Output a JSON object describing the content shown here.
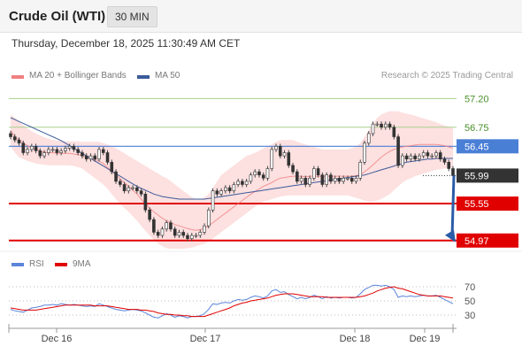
{
  "header": {
    "title": "Crude Oil (WTI)",
    "timeframe": "30 MIN"
  },
  "timestamp": "Thursday, December 18, 2025 11:30:49 AM CET",
  "legend": {
    "ma20": "MA 20 + Bollinger Bands",
    "ma50": "MA 50",
    "rsi": "RSI",
    "ma9": "9MA"
  },
  "copyright": "Research © 2025 Trading Central",
  "colors": {
    "ma20": "#f08080",
    "ma50": "#3b5b9a",
    "bands": "#fde0e0",
    "green": "#a8d08d",
    "blue": "#4a7fd6",
    "red": "#e00000",
    "dark": "#333333",
    "arrow": "#2b5ca8",
    "rsi": "#5b85d9",
    "ma9": "#e00000"
  },
  "chart_data": [
    {
      "type": "candlestick",
      "x_ticks": [
        "Dec 16",
        "Dec 17",
        "Dec 18",
        "Dec 19"
      ],
      "ylim": [
        54.8,
        57.4
      ],
      "levels": [
        {
          "label": "57.20",
          "value": 57.2,
          "style": "resistance"
        },
        {
          "label": "56.75",
          "value": 56.75,
          "style": "resistance"
        },
        {
          "label": "56.45",
          "value": 56.45,
          "style": "pivot"
        },
        {
          "label": "55.99",
          "value": 55.99,
          "style": "last-price"
        },
        {
          "label": "55.55",
          "value": 55.55,
          "style": "support"
        },
        {
          "label": "54.97",
          "value": 54.97,
          "style": "support"
        }
      ],
      "closes": [
        56.6,
        56.55,
        56.5,
        56.35,
        56.4,
        56.45,
        56.38,
        56.3,
        56.35,
        56.4,
        56.4,
        56.35,
        56.38,
        56.42,
        56.45,
        56.4,
        56.35,
        56.3,
        56.25,
        56.3,
        56.25,
        56.4,
        56.35,
        56.2,
        56.05,
        55.9,
        55.85,
        55.75,
        55.8,
        55.8,
        55.75,
        55.7,
        55.45,
        55.3,
        55.1,
        55.05,
        55.15,
        55.25,
        55.15,
        55.05,
        55.1,
        55.05,
        55.0,
        55.05,
        55.05,
        55.1,
        55.2,
        55.45,
        55.75,
        55.7,
        55.75,
        55.8,
        55.75,
        55.85,
        55.9,
        55.85,
        55.9,
        56.0,
        56.05,
        56.0,
        55.95,
        56.1,
        56.4,
        56.45,
        56.3,
        56.35,
        56.15,
        56.05,
        55.9,
        55.95,
        55.85,
        55.95,
        56.1,
        56.0,
        55.85,
        56.0,
        55.9,
        55.95,
        55.9,
        55.95,
        55.95,
        55.9,
        55.95,
        56.2,
        56.5,
        56.65,
        56.8,
        56.8,
        56.75,
        56.8,
        56.75,
        56.6,
        56.15,
        56.3,
        56.25,
        56.3,
        56.25,
        56.3,
        56.35,
        56.3,
        56.3,
        56.35,
        56.25,
        56.2,
        56.1,
        55.99
      ],
      "ma50": [
        56.9,
        56.87,
        56.84,
        56.81,
        56.78,
        56.75,
        56.72,
        56.69,
        56.66,
        56.63,
        56.6,
        56.57,
        56.54,
        56.5,
        56.46,
        56.42,
        56.38,
        56.34,
        56.3,
        56.26,
        56.22,
        56.18,
        56.14,
        56.1,
        56.06,
        56.02,
        55.98,
        55.94,
        55.9,
        55.86,
        55.82,
        55.79,
        55.76,
        55.73,
        55.7,
        55.68,
        55.66,
        55.65,
        55.64,
        55.63,
        55.62,
        55.62,
        55.62,
        55.62,
        55.62,
        55.62,
        55.62,
        55.63,
        55.64,
        55.65,
        55.66,
        55.67,
        55.68,
        55.69,
        55.7,
        55.71,
        55.72,
        55.73,
        55.74,
        55.75,
        55.76,
        55.77,
        55.78,
        55.79,
        55.8,
        55.81,
        55.82,
        55.83,
        55.84,
        55.85,
        55.86,
        55.87,
        55.88,
        55.89,
        55.9,
        55.91,
        55.92,
        55.93,
        55.94,
        55.95,
        55.96,
        55.97,
        55.98,
        55.99,
        56.0,
        56.02,
        56.04,
        56.06,
        56.08,
        56.1,
        56.12,
        56.14,
        56.16,
        56.18,
        56.2,
        56.21,
        56.22,
        56.23,
        56.24,
        56.25,
        56.25,
        56.26,
        56.26,
        56.26,
        56.26,
        56.26
      ],
      "ma20": [
        56.7,
        56.6,
        56.55,
        56.5,
        56.46,
        56.42,
        56.4,
        56.38,
        56.36,
        56.35,
        56.35,
        56.34,
        56.34,
        56.34,
        56.34,
        56.33,
        56.32,
        56.3,
        56.28,
        56.26,
        56.24,
        56.22,
        56.18,
        56.12,
        56.06,
        56.0,
        55.94,
        55.88,
        55.82,
        55.76,
        55.7,
        55.62,
        55.55,
        55.48,
        55.42,
        55.37,
        55.32,
        55.28,
        55.25,
        55.22,
        55.2,
        55.18,
        55.16,
        55.14,
        55.13,
        55.14,
        55.16,
        55.2,
        55.25,
        55.3,
        55.35,
        55.4,
        55.45,
        55.5,
        55.55,
        55.6,
        55.65,
        55.7,
        55.74,
        55.78,
        55.82,
        55.85,
        55.88,
        55.92,
        55.95,
        55.96,
        55.97,
        55.98,
        55.98,
        55.98,
        55.97,
        55.98,
        55.98,
        55.98,
        55.98,
        55.98,
        55.98,
        55.98,
        55.98,
        55.98,
        55.98,
        55.98,
        55.99,
        56.0,
        56.05,
        56.1,
        56.16,
        56.22,
        56.28,
        56.33,
        56.37,
        56.4,
        56.42,
        56.44,
        56.45,
        56.46,
        56.47,
        56.48,
        56.48,
        56.48,
        56.48,
        56.48,
        56.47,
        56.46,
        56.44,
        56.42
      ],
      "bb_upper": [
        56.95,
        56.9,
        56.84,
        56.78,
        56.73,
        56.69,
        56.65,
        56.62,
        56.59,
        56.57,
        56.55,
        56.54,
        56.54,
        56.53,
        56.53,
        56.53,
        56.53,
        56.52,
        56.52,
        56.52,
        56.52,
        56.52,
        56.5,
        56.48,
        56.45,
        56.42,
        56.38,
        56.34,
        56.3,
        56.26,
        56.22,
        56.18,
        56.14,
        56.1,
        56.06,
        56.02,
        55.98,
        55.95,
        55.9,
        55.85,
        55.8,
        55.75,
        55.7,
        55.65,
        55.62,
        55.62,
        55.65,
        55.7,
        55.8,
        55.9,
        56.0,
        56.05,
        56.1,
        56.15,
        56.2,
        56.25,
        56.3,
        56.32,
        56.35,
        56.38,
        56.42,
        56.45,
        56.48,
        56.52,
        56.55,
        56.55,
        56.55,
        56.55,
        56.52,
        56.5,
        56.48,
        56.46,
        56.44,
        56.42,
        56.4,
        56.4,
        56.4,
        56.4,
        56.4,
        56.4,
        56.4,
        56.42,
        56.45,
        56.5,
        56.6,
        56.7,
        56.8,
        56.9,
        56.95,
        56.98,
        57.0,
        57.0,
        57.0,
        56.98,
        56.96,
        56.95,
        56.93,
        56.91,
        56.89,
        56.87,
        56.85,
        56.83,
        56.8,
        56.78,
        56.76,
        56.74
      ],
      "bb_lower": [
        56.45,
        56.35,
        56.28,
        56.25,
        56.22,
        56.2,
        56.18,
        56.17,
        56.16,
        56.15,
        56.15,
        56.15,
        56.15,
        56.15,
        56.15,
        56.14,
        56.12,
        56.1,
        56.05,
        56.0,
        55.95,
        55.9,
        55.85,
        55.78,
        55.7,
        55.62,
        55.55,
        55.48,
        55.42,
        55.35,
        55.28,
        55.2,
        55.12,
        55.05,
        54.98,
        54.92,
        54.88,
        54.85,
        54.84,
        54.84,
        54.84,
        54.84,
        54.85,
        54.86,
        54.88,
        54.9,
        54.92,
        54.95,
        55.0,
        55.05,
        55.1,
        55.15,
        55.2,
        55.25,
        55.3,
        55.35,
        55.4,
        55.45,
        55.5,
        55.55,
        55.58,
        55.6,
        55.62,
        55.64,
        55.66,
        55.67,
        55.68,
        55.68,
        55.68,
        55.68,
        55.68,
        55.68,
        55.68,
        55.68,
        55.68,
        55.68,
        55.68,
        55.68,
        55.68,
        55.68,
        55.68,
        55.66,
        55.64,
        55.62,
        55.6,
        55.58,
        55.58,
        55.6,
        55.62,
        55.66,
        55.7,
        55.76,
        55.82,
        55.88,
        55.92,
        55.95,
        55.98,
        56.0,
        56.02,
        56.04,
        56.06,
        56.08,
        56.09,
        56.1,
        56.11,
        56.1
      ],
      "projection": {
        "from": 55.99,
        "to": 54.97
      }
    },
    {
      "type": "line",
      "ylim": [
        15,
        85
      ],
      "y_ticks": [
        "70",
        "50",
        "30"
      ],
      "series": [
        {
          "name": "RSI",
          "values": [
            38,
            36,
            35,
            34,
            37,
            40,
            41,
            42,
            44,
            44,
            45,
            44,
            46,
            45,
            44,
            45,
            44,
            43,
            42,
            43,
            42,
            46,
            44,
            42,
            40,
            38,
            37,
            36,
            37,
            38,
            37,
            36,
            33,
            30,
            27,
            26,
            29,
            32,
            30,
            27,
            29,
            28,
            26,
            28,
            28,
            29,
            32,
            38,
            46,
            45,
            47,
            48,
            47,
            50,
            52,
            51,
            52,
            55,
            57,
            56,
            54,
            57,
            64,
            66,
            62,
            63,
            59,
            56,
            53,
            55,
            53,
            55,
            58,
            56,
            53,
            56,
            54,
            55,
            54,
            55,
            55,
            54,
            55,
            60,
            66,
            69,
            72,
            72,
            71,
            72,
            70,
            66,
            55,
            57,
            56,
            57,
            56,
            57,
            58,
            57,
            57,
            58,
            55,
            52,
            49,
            46
          ]
        },
        {
          "name": "9MA",
          "values": [
            40,
            39,
            38,
            37,
            37,
            37,
            37,
            38,
            39,
            40,
            41,
            42,
            43,
            44,
            44,
            44,
            44,
            44,
            44,
            44,
            43,
            43,
            43,
            43,
            42,
            41,
            40,
            39,
            38,
            38,
            38,
            37,
            37,
            36,
            35,
            33,
            32,
            31,
            31,
            30,
            30,
            29,
            29,
            28,
            28,
            28,
            28,
            30,
            32,
            34,
            36,
            38,
            40,
            43,
            45,
            47,
            48,
            50,
            51,
            52,
            53,
            54,
            56,
            58,
            59,
            60,
            60,
            60,
            59,
            58,
            57,
            56,
            56,
            56,
            56,
            55,
            55,
            55,
            55,
            55,
            55,
            55,
            55,
            56,
            57,
            59,
            61,
            64,
            66,
            68,
            69,
            70,
            68,
            67,
            65,
            63,
            61,
            59,
            58,
            57,
            57,
            57,
            57,
            56,
            55,
            54
          ]
        }
      ]
    }
  ]
}
